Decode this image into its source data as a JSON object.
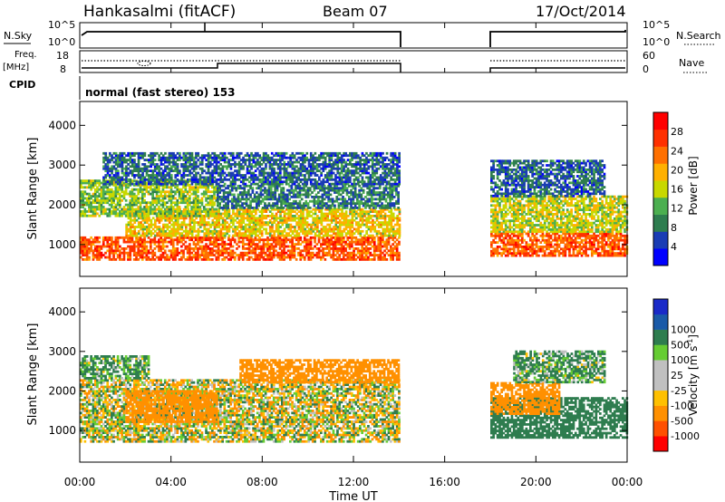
{
  "header": {
    "station": "Hankasalmi (fitACF)",
    "beam": "Beam 07",
    "date": "17/Oct/2014"
  },
  "top_panels": {
    "nsky_label": "N.Sky",
    "nsky_ticks": [
      "10^5",
      "10^0"
    ],
    "nsearch_label": "N.Search",
    "nsearch_ticks": [
      "10^5",
      "10^0"
    ],
    "freq_label": "Freq.",
    "freq_unit": "[MHz]",
    "freq_ticks": [
      "18",
      "8"
    ],
    "nave_label": "Nave",
    "nave_ticks": [
      "60",
      "0"
    ],
    "cpid_label": "CPID",
    "cpid_value": "normal (fast stereo) 153"
  },
  "colors": {
    "power_scale": [
      "#0000ff",
      "#1a3cb4",
      "#2e7d4f",
      "#4caf50",
      "#c8d800",
      "#ffb000",
      "#ff7000",
      "#ff3000",
      "#ff0000"
    ],
    "velocity_scale": [
      "#ff0000",
      "#ff5000",
      "#ff9000",
      "#ffc000",
      "#c0c0c0",
      "#c0c0c0",
      "#66cc33",
      "#2e7d4f",
      "#1a5aa8",
      "#1a2ac8"
    ]
  },
  "chart_data": [
    {
      "type": "heatmap",
      "panel": "power",
      "ylabel": "Slant Range [km]",
      "yticks": [
        "1000",
        "2000",
        "3000",
        "4000"
      ],
      "ylim": [
        200,
        4600
      ],
      "xlim": [
        0,
        24
      ],
      "no_data_hours": [
        14,
        18
      ],
      "colorbar_label": "Power [dB]",
      "colorbar_ticks": [
        "4",
        "8",
        "12",
        "16",
        "20",
        "24",
        "28"
      ],
      "colorbar_range": [
        0,
        32
      ],
      "bands": [
        {
          "t0": 0,
          "t1": 14,
          "r0": 600,
          "r1": 1200,
          "level": 28
        },
        {
          "t0": 2,
          "t1": 14,
          "r0": 1200,
          "r1": 1900,
          "level": 20
        },
        {
          "t0": 0,
          "t1": 6,
          "r0": 1700,
          "r1": 2600,
          "level": 16
        },
        {
          "t0": 6,
          "t1": 14,
          "r0": 1900,
          "r1": 2500,
          "level": 10
        },
        {
          "t0": 1,
          "t1": 14,
          "r0": 2500,
          "r1": 3300,
          "level": 8
        },
        {
          "t0": 18,
          "t1": 24,
          "r0": 700,
          "r1": 1300,
          "level": 28
        },
        {
          "t0": 18,
          "t1": 24,
          "r0": 1300,
          "r1": 2200,
          "level": 18
        },
        {
          "t0": 18,
          "t1": 23,
          "r0": 2200,
          "r1": 3100,
          "level": 8
        }
      ]
    },
    {
      "type": "heatmap",
      "panel": "velocity",
      "ylabel": "Slant Range [km]",
      "yticks": [
        "1000",
        "2000",
        "3000",
        "4000"
      ],
      "ylim": [
        200,
        4600
      ],
      "xlim": [
        0,
        24
      ],
      "xticks": [
        "00:00",
        "04:00",
        "08:00",
        "12:00",
        "16:00",
        "20:00",
        "00:00"
      ],
      "xlabel": "Time UT",
      "no_data_hours": [
        14,
        18
      ],
      "colorbar_label": "Velocity  [m s",
      "colorbar_unit_exp": "-1",
      "colorbar_unit_close": "]",
      "colorbar_ticks": [
        "-1000",
        "-500",
        "-100",
        "-25",
        "25",
        "100",
        "500",
        "1000"
      ],
      "bands": [
        {
          "t0": 0,
          "t1": 14,
          "r0": 700,
          "r1": 1200,
          "level": 0
        },
        {
          "t0": 0,
          "t1": 14,
          "r0": 1200,
          "r1": 2300,
          "level": 0
        },
        {
          "t0": 2,
          "t1": 6,
          "r0": 1200,
          "r1": 2000,
          "level": -300
        },
        {
          "t0": 7,
          "t1": 14,
          "r0": 2200,
          "r1": 2800,
          "level": -300
        },
        {
          "t0": 0,
          "t1": 3,
          "r0": 2300,
          "r1": 2900,
          "level": 150
        },
        {
          "t0": 18,
          "t1": 24,
          "r0": 800,
          "r1": 1800,
          "level": 300
        },
        {
          "t0": 18,
          "t1": 21,
          "r0": 1400,
          "r1": 2200,
          "level": -300
        },
        {
          "t0": 19,
          "t1": 23,
          "r0": 2200,
          "r1": 3000,
          "level": 150
        }
      ]
    }
  ]
}
